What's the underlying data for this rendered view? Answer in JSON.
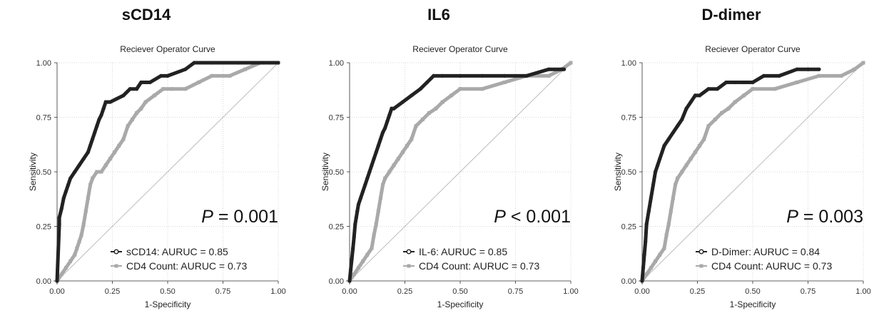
{
  "colors": {
    "primary": "#222222",
    "comparator": "#a9a9a9",
    "diagonal": "#bdbdbd",
    "grid": "#cccccc"
  },
  "chart_data": [
    {
      "type": "line",
      "panel_title": "sCD14",
      "title": "Reciever Operator Curve",
      "xlabel": "1-Specificity",
      "ylabel": "Sensitivity",
      "xlim": [
        0,
        1
      ],
      "ylim": [
        0,
        1
      ],
      "xticks": [
        "0.00",
        "0.25",
        "0.50",
        "0.75",
        "1.00"
      ],
      "yticks": [
        "0.00",
        "0.25",
        "0.50",
        "0.75",
        "1.00"
      ],
      "grid": true,
      "annotation": {
        "symbol": "P",
        "text": " = 0.001"
      },
      "legend_position": "bottom-right",
      "series": [
        {
          "name": "sCD14: AURUC = 0.85",
          "role": "primary",
          "marker": "circle",
          "x": [
            0,
            0.01,
            0.01,
            0.02,
            0.03,
            0.04,
            0.05,
            0.06,
            0.08,
            0.1,
            0.12,
            0.14,
            0.15,
            0.16,
            0.17,
            0.18,
            0.19,
            0.2,
            0.21,
            0.22,
            0.23,
            0.24,
            0.3,
            0.33,
            0.36,
            0.38,
            0.42,
            0.47,
            0.5,
            0.58,
            0.62,
            0.7,
            0.82,
            0.93,
            0.96,
            1.0
          ],
          "y": [
            0,
            0.26,
            0.29,
            0.33,
            0.38,
            0.41,
            0.44,
            0.47,
            0.5,
            0.53,
            0.56,
            0.59,
            0.62,
            0.65,
            0.68,
            0.71,
            0.74,
            0.76,
            0.79,
            0.82,
            0.82,
            0.82,
            0.85,
            0.88,
            0.88,
            0.91,
            0.91,
            0.94,
            0.94,
            0.97,
            1.0,
            1.0,
            1.0,
            1.0,
            1.0,
            1.0
          ]
        },
        {
          "name": "CD4 Count: AURUC = 0.73",
          "role": "comparator",
          "marker": "square",
          "x": [
            0,
            0.02,
            0.04,
            0.06,
            0.08,
            0.09,
            0.1,
            0.11,
            0.12,
            0.13,
            0.14,
            0.15,
            0.16,
            0.18,
            0.2,
            0.22,
            0.24,
            0.26,
            0.28,
            0.3,
            0.32,
            0.34,
            0.36,
            0.38,
            0.4,
            0.44,
            0.48,
            0.52,
            0.58,
            0.64,
            0.7,
            0.78,
            0.85,
            0.92,
            1.0
          ],
          "y": [
            0,
            0.03,
            0.06,
            0.09,
            0.12,
            0.15,
            0.18,
            0.21,
            0.26,
            0.32,
            0.38,
            0.44,
            0.47,
            0.5,
            0.5,
            0.53,
            0.56,
            0.59,
            0.62,
            0.65,
            0.71,
            0.74,
            0.77,
            0.79,
            0.82,
            0.85,
            0.88,
            0.88,
            0.88,
            0.91,
            0.94,
            0.94,
            0.97,
            1.0,
            1.0
          ]
        }
      ]
    },
    {
      "type": "line",
      "panel_title": "IL6",
      "title": "Reciever Operator Curve",
      "xlabel": "1-Specificity",
      "ylabel": "Sensitivity",
      "xlim": [
        0,
        1
      ],
      "ylim": [
        0,
        1
      ],
      "xticks": [
        "0.00",
        "0.25",
        "0.50",
        "0.75",
        "1.00"
      ],
      "yticks": [
        "0.00",
        "0.25",
        "0.50",
        "0.75",
        "1.00"
      ],
      "grid": true,
      "annotation": {
        "symbol": "P",
        "text": " < 0.001"
      },
      "legend_position": "bottom-right",
      "series": [
        {
          "name": "IL-6: AURUC = 0.85",
          "role": "primary",
          "marker": "circle",
          "x": [
            0,
            0.005,
            0.01,
            0.015,
            0.02,
            0.025,
            0.03,
            0.035,
            0.04,
            0.05,
            0.06,
            0.07,
            0.08,
            0.09,
            0.1,
            0.11,
            0.12,
            0.13,
            0.14,
            0.15,
            0.16,
            0.17,
            0.18,
            0.19,
            0.2,
            0.24,
            0.28,
            0.32,
            0.35,
            0.38,
            0.42,
            0.5,
            0.6,
            0.7,
            0.8,
            0.9,
            0.96,
            0.97
          ],
          "y": [
            0,
            0.05,
            0.1,
            0.15,
            0.2,
            0.26,
            0.29,
            0.32,
            0.35,
            0.38,
            0.41,
            0.44,
            0.47,
            0.5,
            0.53,
            0.56,
            0.59,
            0.62,
            0.65,
            0.68,
            0.7,
            0.73,
            0.76,
            0.79,
            0.79,
            0.82,
            0.85,
            0.88,
            0.91,
            0.94,
            0.94,
            0.94,
            0.94,
            0.94,
            0.94,
            0.97,
            0.97,
            0.97
          ]
        },
        {
          "name": "CD4 Count: AURUC = 0.73",
          "role": "comparator",
          "marker": "square",
          "x": [
            0,
            0.02,
            0.04,
            0.06,
            0.08,
            0.1,
            0.11,
            0.12,
            0.13,
            0.14,
            0.15,
            0.16,
            0.18,
            0.2,
            0.22,
            0.24,
            0.26,
            0.28,
            0.3,
            0.33,
            0.36,
            0.39,
            0.42,
            0.46,
            0.5,
            0.6,
            0.7,
            0.8,
            0.9,
            0.96,
            1.0
          ],
          "y": [
            0,
            0.03,
            0.06,
            0.09,
            0.12,
            0.15,
            0.21,
            0.26,
            0.32,
            0.38,
            0.44,
            0.47,
            0.5,
            0.53,
            0.56,
            0.59,
            0.62,
            0.65,
            0.71,
            0.74,
            0.77,
            0.79,
            0.82,
            0.85,
            0.88,
            0.88,
            0.91,
            0.94,
            0.94,
            0.97,
            1.0
          ]
        }
      ]
    },
    {
      "type": "line",
      "panel_title": "D-dimer",
      "title": "Reciever Operator Curve",
      "xlabel": "1-Specificity",
      "ylabel": "Sensitivity",
      "xlim": [
        0,
        1
      ],
      "ylim": [
        0,
        1
      ],
      "xticks": [
        "0.00",
        "0.25",
        "0.50",
        "0.75",
        "1.00"
      ],
      "yticks": [
        "0.00",
        "0.25",
        "0.50",
        "0.75",
        "1.00"
      ],
      "grid": true,
      "annotation": {
        "symbol": "P",
        "text": " = 0.003"
      },
      "legend_position": "bottom-right",
      "series": [
        {
          "name": "D-Dimer: AURUC = 0.84",
          "role": "primary",
          "marker": "circle",
          "x": [
            0,
            0.005,
            0.01,
            0.015,
            0.02,
            0.03,
            0.04,
            0.05,
            0.06,
            0.07,
            0.08,
            0.09,
            0.1,
            0.12,
            0.14,
            0.16,
            0.18,
            0.2,
            0.22,
            0.24,
            0.26,
            0.3,
            0.34,
            0.38,
            0.42,
            0.46,
            0.5,
            0.55,
            0.62,
            0.7,
            0.75,
            0.8
          ],
          "y": [
            0,
            0.06,
            0.12,
            0.18,
            0.26,
            0.32,
            0.38,
            0.44,
            0.5,
            0.53,
            0.56,
            0.59,
            0.62,
            0.65,
            0.68,
            0.71,
            0.74,
            0.79,
            0.82,
            0.85,
            0.85,
            0.88,
            0.88,
            0.91,
            0.91,
            0.91,
            0.91,
            0.94,
            0.94,
            0.97,
            0.97,
            0.97
          ]
        },
        {
          "name": "CD4 Count: AURUC = 0.73",
          "role": "comparator",
          "marker": "square",
          "x": [
            0,
            0.02,
            0.04,
            0.06,
            0.08,
            0.1,
            0.11,
            0.12,
            0.13,
            0.14,
            0.15,
            0.16,
            0.18,
            0.2,
            0.22,
            0.24,
            0.26,
            0.28,
            0.3,
            0.33,
            0.36,
            0.39,
            0.42,
            0.46,
            0.5,
            0.6,
            0.7,
            0.8,
            0.9,
            0.96,
            1.0
          ],
          "y": [
            0,
            0.03,
            0.06,
            0.09,
            0.12,
            0.15,
            0.21,
            0.26,
            0.32,
            0.38,
            0.44,
            0.47,
            0.5,
            0.53,
            0.56,
            0.59,
            0.62,
            0.65,
            0.71,
            0.74,
            0.77,
            0.79,
            0.82,
            0.85,
            0.88,
            0.88,
            0.91,
            0.94,
            0.94,
            0.97,
            1.0
          ]
        }
      ]
    }
  ]
}
